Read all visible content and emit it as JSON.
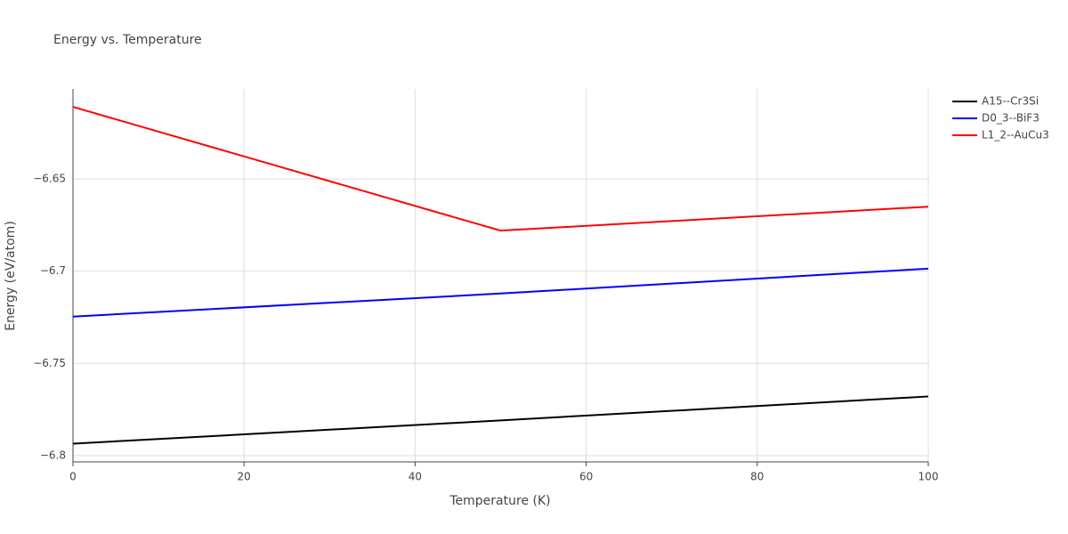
{
  "chart_data": {
    "type": "line",
    "title": "Energy vs. Temperature",
    "x_label": "Temperature (K)",
    "y_label": "Energy (eV/atom)",
    "x": [
      0,
      50,
      100
    ],
    "series": [
      {
        "name": "A15--Cr3Si",
        "color": "#000000",
        "values": [
          -6.7935,
          -6.7809,
          -6.7679
        ]
      },
      {
        "name": "D0_3--BiF3",
        "color": "#0000ff",
        "values": [
          -6.7246,
          -6.7121,
          -6.6986
        ]
      },
      {
        "name": "L1_2--AuCu3",
        "color": "#ff0000",
        "values": [
          -6.6109,
          -6.678,
          -6.665
        ]
      }
    ],
    "xlim": [
      0,
      100
    ],
    "xticks": [
      0,
      20,
      40,
      60,
      80,
      100
    ],
    "ylim": [
      -6.8034,
      -6.6012
    ],
    "yticks": [
      {
        "value": -6.8,
        "label": "−6.8"
      },
      {
        "value": -6.75,
        "label": "−6.75"
      },
      {
        "value": -6.7,
        "label": "−6.7"
      },
      {
        "value": -6.65,
        "label": "−6.65"
      }
    ],
    "grid": true
  }
}
